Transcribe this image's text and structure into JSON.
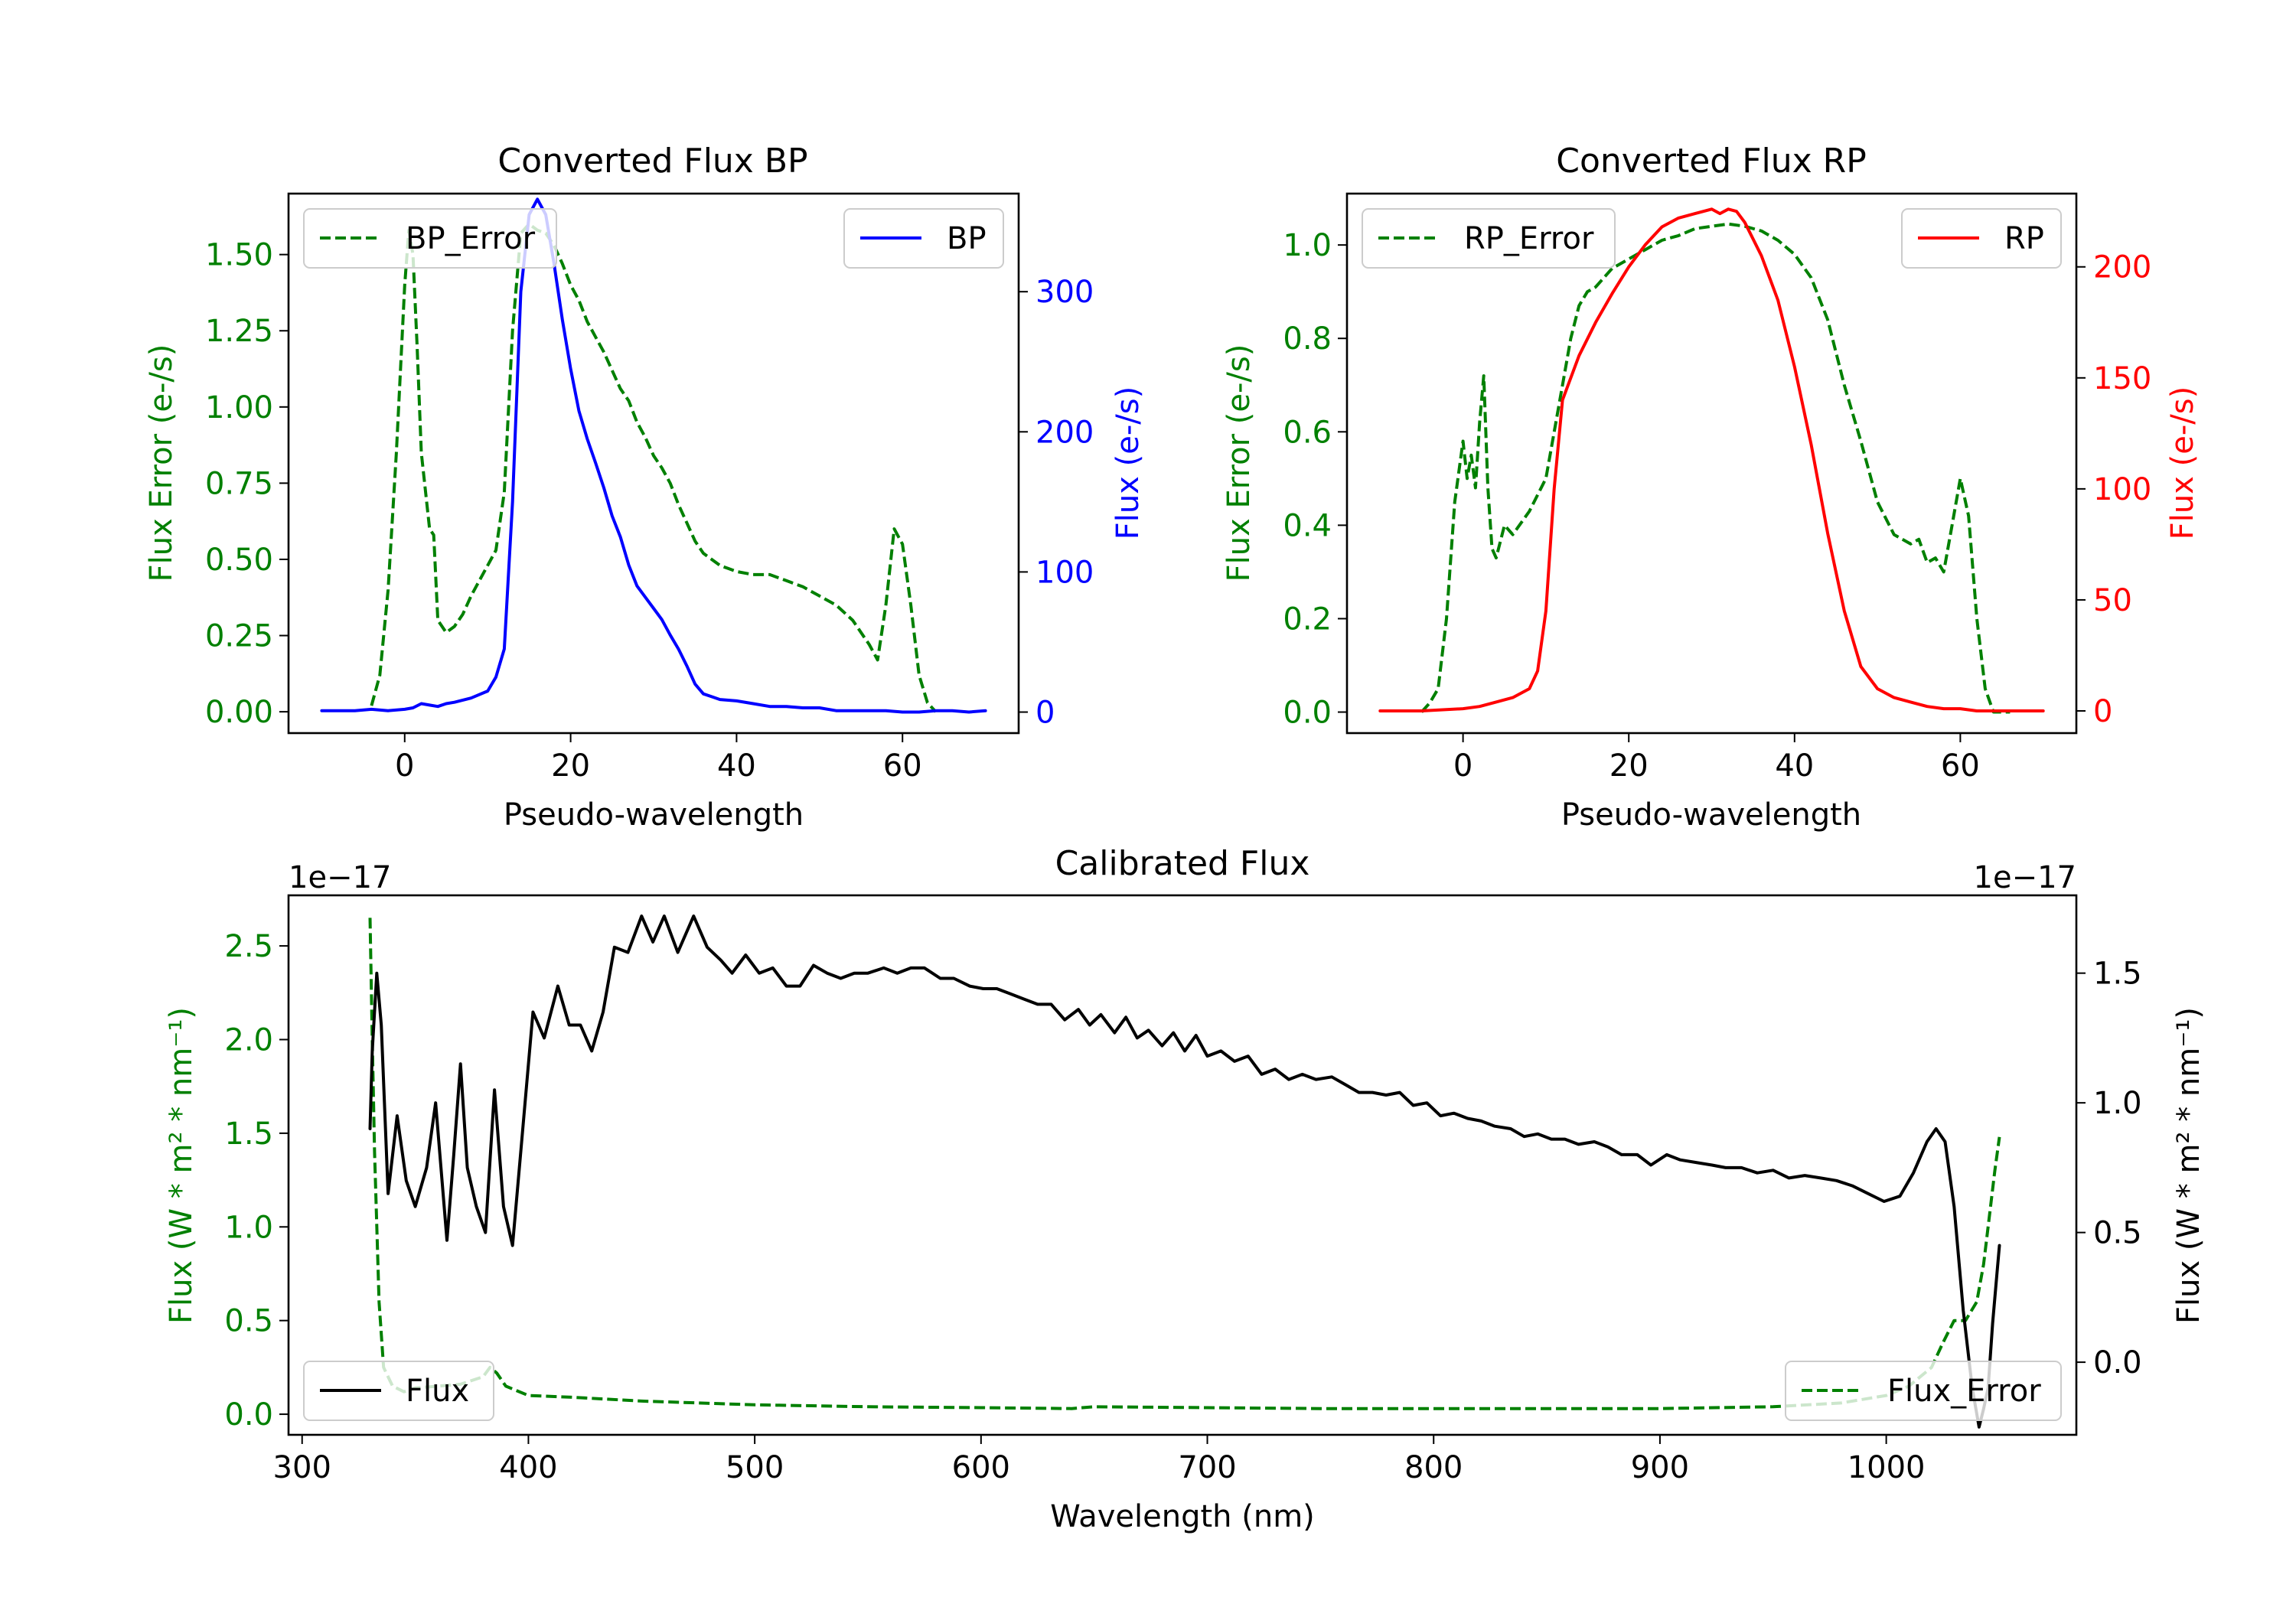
{
  "colors": {
    "green": "#008000",
    "blue": "#0000ff",
    "red": "#ff0000",
    "black": "#000000"
  },
  "chart_data": [
    {
      "id": "bp",
      "type": "line",
      "title": "Converted Flux BP",
      "xlabel": "Pseudo-wavelength",
      "ylabel_left": "Flux Error (e-/s)",
      "ylabel_right": "Flux (e-/s)",
      "xlim": [
        -14,
        74
      ],
      "ylim_left": [
        -0.07,
        1.7
      ],
      "ylim_right": [
        -15,
        370
      ],
      "xticks": [
        0,
        20,
        40,
        60
      ],
      "yticks_left": [
        0.0,
        0.25,
        0.5,
        0.75,
        1.0,
        1.25,
        1.5
      ],
      "ytick_labels_left": [
        "0.00",
        "0.25",
        "0.50",
        "0.75",
        "1.00",
        "1.25",
        "1.50"
      ],
      "yticks_right": [
        0,
        100,
        200,
        300
      ],
      "ytick_labels_right": [
        "0",
        "100",
        "200",
        "300"
      ],
      "legend_left": {
        "label": "BP_Error",
        "loc": "upper left"
      },
      "legend_right": {
        "label": "BP",
        "loc": "upper right"
      },
      "series": [
        {
          "name": "BP_Error",
          "axis": "left",
          "color": "#008000",
          "dash": true,
          "x": [
            -4,
            -3,
            -2,
            -1,
            0,
            0.5,
            1,
            1.5,
            2,
            3,
            3.5,
            4,
            5,
            6,
            7,
            8,
            9,
            10,
            11,
            12,
            13,
            14,
            15,
            16,
            17,
            18,
            19,
            20,
            21,
            22,
            23,
            24,
            25,
            26,
            27,
            28,
            29,
            30,
            31,
            32,
            33,
            34,
            35,
            36,
            37,
            38,
            39,
            40,
            42,
            44,
            46,
            48,
            50,
            52,
            54,
            56,
            57,
            58,
            59,
            60,
            61,
            62,
            63,
            64
          ],
          "y": [
            0.02,
            0.12,
            0.4,
            0.85,
            1.4,
            1.58,
            1.5,
            1.2,
            0.85,
            0.6,
            0.58,
            0.3,
            0.26,
            0.28,
            0.32,
            0.38,
            0.43,
            0.48,
            0.53,
            0.72,
            1.25,
            1.57,
            1.6,
            1.58,
            1.57,
            1.53,
            1.47,
            1.4,
            1.35,
            1.28,
            1.23,
            1.18,
            1.12,
            1.06,
            1.02,
            0.95,
            0.9,
            0.84,
            0.8,
            0.75,
            0.68,
            0.62,
            0.56,
            0.52,
            0.5,
            0.48,
            0.47,
            0.46,
            0.45,
            0.45,
            0.43,
            0.41,
            0.38,
            0.35,
            0.3,
            0.22,
            0.17,
            0.35,
            0.6,
            0.55,
            0.35,
            0.12,
            0.03,
            0.0
          ]
        },
        {
          "name": "BP",
          "axis": "right",
          "color": "#0000ff",
          "dash": false,
          "x": [
            -10,
            -6,
            -4,
            -2,
            0,
            1,
            2,
            3,
            4,
            5,
            6,
            8,
            10,
            11,
            12,
            13,
            14,
            15,
            16,
            17,
            18,
            19,
            20,
            21,
            22,
            23,
            24,
            25,
            26,
            27,
            28,
            29,
            30,
            31,
            32,
            33,
            34,
            35,
            36,
            37,
            38,
            40,
            42,
            44,
            46,
            48,
            50,
            52,
            54,
            56,
            58,
            60,
            62,
            64,
            66,
            68,
            70
          ],
          "y": [
            1,
            1,
            2,
            1,
            2,
            3,
            6,
            5,
            4,
            6,
            7,
            10,
            15,
            25,
            45,
            150,
            300,
            355,
            366,
            355,
            320,
            280,
            245,
            215,
            195,
            178,
            160,
            140,
            125,
            105,
            90,
            82,
            74,
            66,
            55,
            45,
            33,
            20,
            13,
            11,
            9,
            8,
            6,
            4,
            4,
            3,
            3,
            1,
            1,
            1,
            1,
            0,
            0,
            1,
            1,
            0,
            1
          ]
        }
      ]
    },
    {
      "id": "rp",
      "type": "line",
      "title": "Converted Flux RP",
      "xlabel": "Pseudo-wavelength",
      "ylabel_left": "Flux Error (e-/s)",
      "ylabel_right": "Flux (e-/s)",
      "xlim": [
        -14,
        74
      ],
      "ylim_left": [
        -0.045,
        1.11
      ],
      "ylim_right": [
        -10,
        233
      ],
      "xticks": [
        0,
        20,
        40,
        60
      ],
      "yticks_left": [
        0.0,
        0.2,
        0.4,
        0.6,
        0.8,
        1.0
      ],
      "ytick_labels_left": [
        "0.0",
        "0.2",
        "0.4",
        "0.6",
        "0.8",
        "1.0"
      ],
      "yticks_right": [
        0,
        50,
        100,
        150,
        200
      ],
      "ytick_labels_right": [
        "0",
        "50",
        "100",
        "150",
        "200"
      ],
      "legend_left": {
        "label": "RP_Error",
        "loc": "upper left"
      },
      "legend_right": {
        "label": "RP",
        "loc": "upper right"
      },
      "series": [
        {
          "name": "RP_Error",
          "axis": "left",
          "color": "#008000",
          "dash": true,
          "x": [
            -5,
            -4,
            -3,
            -2,
            -1,
            0,
            0.5,
            1,
            1.5,
            2,
            2.5,
            3,
            3.5,
            4,
            5,
            6,
            8,
            10,
            12,
            13,
            14,
            15,
            16,
            17,
            18,
            20,
            22,
            24,
            26,
            28,
            30,
            32,
            34,
            36,
            38,
            40,
            42,
            44,
            46,
            48,
            50,
            52,
            54,
            55,
            56,
            57,
            58,
            59,
            60,
            61,
            62,
            63,
            64,
            66
          ],
          "y": [
            0.0,
            0.02,
            0.05,
            0.2,
            0.45,
            0.58,
            0.5,
            0.55,
            0.48,
            0.62,
            0.72,
            0.48,
            0.35,
            0.33,
            0.4,
            0.38,
            0.43,
            0.5,
            0.7,
            0.8,
            0.87,
            0.9,
            0.91,
            0.93,
            0.95,
            0.97,
            0.99,
            1.01,
            1.02,
            1.035,
            1.04,
            1.045,
            1.04,
            1.03,
            1.01,
            0.98,
            0.93,
            0.84,
            0.7,
            0.58,
            0.45,
            0.38,
            0.36,
            0.37,
            0.32,
            0.33,
            0.3,
            0.4,
            0.5,
            0.42,
            0.2,
            0.05,
            0.0,
            0.0
          ]
        },
        {
          "name": "RP",
          "axis": "right",
          "color": "#ff0000",
          "dash": false,
          "x": [
            -10,
            -5,
            0,
            2,
            4,
            6,
            8,
            9,
            10,
            11,
            12,
            13,
            14,
            16,
            18,
            20,
            22,
            24,
            26,
            28,
            29,
            30,
            31,
            32,
            33,
            34,
            36,
            38,
            40,
            42,
            44,
            46,
            48,
            50,
            52,
            54,
            56,
            58,
            60,
            62,
            65,
            70
          ],
          "y": [
            0,
            0,
            1,
            2,
            4,
            6,
            10,
            18,
            45,
            100,
            140,
            150,
            160,
            175,
            188,
            200,
            210,
            218,
            222,
            224,
            225,
            226,
            224,
            226,
            225,
            220,
            205,
            185,
            155,
            120,
            80,
            45,
            20,
            10,
            6,
            4,
            2,
            1,
            1,
            0,
            0,
            0
          ]
        }
      ]
    },
    {
      "id": "calibrated",
      "type": "line",
      "title": "Calibrated Flux",
      "xlabel": "Wavelength (nm)",
      "ylabel_left": "Flux (W * m² * nm⁻¹)",
      "ylabel_right": "Flux (W * m² * nm⁻¹)",
      "offset_left": "1e−17",
      "offset_right": "1e−17",
      "xlim": [
        294,
        1084
      ],
      "ylim_left": [
        -0.11,
        2.77
      ],
      "ylim_right": [
        -0.28,
        1.8
      ],
      "xticks": [
        300,
        400,
        500,
        600,
        700,
        800,
        900,
        1000
      ],
      "yticks_left": [
        0.0,
        0.5,
        1.0,
        1.5,
        2.0,
        2.5
      ],
      "ytick_labels_left": [
        "0.0",
        "0.5",
        "1.0",
        "1.5",
        "2.0",
        "2.5"
      ],
      "yticks_right": [
        0.0,
        0.5,
        1.0,
        1.5
      ],
      "ytick_labels_right": [
        "0.0",
        "0.5",
        "1.0",
        "1.5"
      ],
      "legend_left": {
        "label": "Flux",
        "loc": "lower left"
      },
      "legend_right": {
        "label": "Flux_Error",
        "loc": "lower right"
      },
      "series": [
        {
          "name": "Flux_Error",
          "axis": "left",
          "color": "#008000",
          "dash": true,
          "x": [
            330,
            331,
            332,
            334,
            336,
            340,
            345,
            350,
            360,
            370,
            380,
            383,
            386,
            390,
            400,
            420,
            450,
            500,
            550,
            600,
            640,
            650,
            700,
            750,
            800,
            850,
            900,
            950,
            980,
            1000,
            1010,
            1020,
            1025,
            1030,
            1035,
            1040,
            1043,
            1045,
            1048,
            1050
          ],
          "y": [
            2.65,
            2.0,
            1.4,
            0.6,
            0.25,
            0.15,
            0.12,
            0.14,
            0.15,
            0.16,
            0.2,
            0.25,
            0.22,
            0.15,
            0.1,
            0.09,
            0.07,
            0.05,
            0.04,
            0.035,
            0.03,
            0.04,
            0.035,
            0.03,
            0.03,
            0.03,
            0.03,
            0.04,
            0.06,
            0.1,
            0.15,
            0.25,
            0.38,
            0.5,
            0.5,
            0.6,
            0.8,
            1.0,
            1.3,
            1.48
          ]
        },
        {
          "name": "Flux",
          "axis": "right",
          "color": "#000000",
          "dash": false,
          "x": [
            330,
            331,
            333,
            335,
            338,
            342,
            346,
            350,
            355,
            359,
            364,
            367,
            370,
            373,
            377,
            381,
            385,
            389,
            393,
            397,
            402,
            407,
            413,
            418,
            423,
            428,
            433,
            438,
            444,
            450,
            455,
            460,
            466,
            473,
            479,
            485,
            490,
            496,
            502,
            508,
            514,
            520,
            526,
            532,
            538,
            544,
            550,
            557,
            563,
            569,
            575,
            582,
            588,
            595,
            601,
            607,
            613,
            619,
            625,
            631,
            637,
            643,
            648,
            653,
            659,
            664,
            669,
            674,
            680,
            685,
            690,
            695,
            700,
            706,
            712,
            718,
            724,
            730,
            736,
            742,
            748,
            755,
            761,
            767,
            773,
            779,
            785,
            791,
            797,
            803,
            809,
            815,
            821,
            827,
            834,
            840,
            846,
            852,
            858,
            864,
            871,
            877,
            883,
            890,
            896,
            903,
            909,
            916,
            923,
            929,
            936,
            943,
            950,
            957,
            964,
            971,
            978,
            985,
            992,
            999,
            1006,
            1012,
            1018,
            1022,
            1026,
            1030,
            1034,
            1038,
            1041,
            1043,
            1045,
            1047,
            1049,
            1050
          ],
          "y": [
            0.9,
            1.2,
            1.5,
            1.3,
            0.65,
            0.95,
            0.7,
            0.6,
            0.75,
            1.0,
            0.47,
            0.8,
            1.15,
            0.75,
            0.6,
            0.5,
            1.05,
            0.6,
            0.45,
            0.85,
            1.35,
            1.25,
            1.45,
            1.3,
            1.3,
            1.2,
            1.35,
            1.6,
            1.58,
            1.72,
            1.62,
            1.72,
            1.58,
            1.72,
            1.6,
            1.55,
            1.5,
            1.57,
            1.5,
            1.52,
            1.45,
            1.45,
            1.53,
            1.5,
            1.48,
            1.5,
            1.5,
            1.52,
            1.5,
            1.52,
            1.52,
            1.48,
            1.48,
            1.45,
            1.44,
            1.44,
            1.42,
            1.4,
            1.38,
            1.38,
            1.32,
            1.36,
            1.3,
            1.34,
            1.27,
            1.33,
            1.25,
            1.28,
            1.22,
            1.27,
            1.2,
            1.26,
            1.18,
            1.2,
            1.16,
            1.18,
            1.11,
            1.13,
            1.09,
            1.11,
            1.09,
            1.1,
            1.07,
            1.04,
            1.04,
            1.03,
            1.04,
            0.99,
            1.0,
            0.95,
            0.96,
            0.94,
            0.93,
            0.91,
            0.9,
            0.87,
            0.88,
            0.86,
            0.86,
            0.84,
            0.85,
            0.83,
            0.8,
            0.8,
            0.76,
            0.8,
            0.78,
            0.77,
            0.76,
            0.75,
            0.75,
            0.73,
            0.74,
            0.71,
            0.72,
            0.71,
            0.7,
            0.68,
            0.65,
            0.62,
            0.64,
            0.73,
            0.85,
            0.9,
            0.85,
            0.6,
            0.2,
            -0.1,
            -0.25,
            -0.18,
            -0.1,
            0.15,
            0.35,
            0.45
          ]
        }
      ]
    }
  ]
}
